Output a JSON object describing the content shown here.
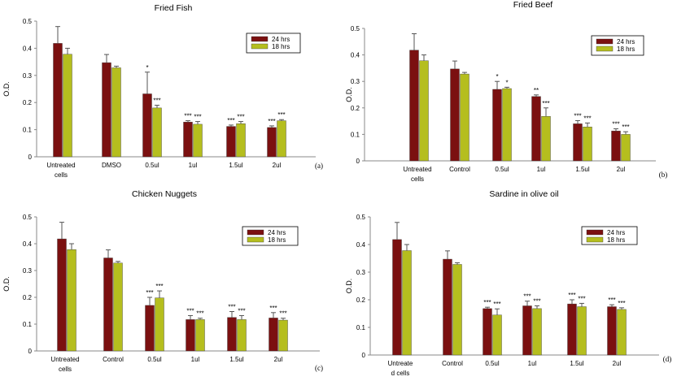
{
  "colors": {
    "series1": "#7B1010",
    "series2": "#B5BE1E",
    "axis": "#888888",
    "errorbar": "#555555"
  },
  "chart_data": [
    {
      "type": "bar",
      "title": "Fried Fish",
      "ylabel": "O.D.",
      "ylim": [
        0,
        0.5
      ],
      "yticks": [
        "0",
        "0.1",
        "0.2",
        "0.3",
        "0.4",
        "0.5"
      ],
      "grid": false,
      "legend_position": "top-right",
      "panel_label": "(a)",
      "categories": [
        [
          "Untreated",
          "cells"
        ],
        [
          "DMSO"
        ],
        [
          "0.5ul"
        ],
        [
          "1ul"
        ],
        [
          "1.5ul"
        ],
        [
          "2ul"
        ]
      ],
      "series": [
        {
          "name": "24 hrs",
          "values": [
            0.418,
            0.347,
            0.232,
            0.128,
            0.112,
            0.108
          ],
          "errors": [
            0.062,
            0.03,
            0.08,
            0.005,
            0.005,
            0.006
          ],
          "significance": [
            "",
            "",
            "*",
            "***",
            "***",
            "***"
          ]
        },
        {
          "name": "18 hrs",
          "values": [
            0.378,
            0.328,
            0.18,
            0.12,
            0.122,
            0.133
          ],
          "errors": [
            0.022,
            0.006,
            0.01,
            0.01,
            0.008,
            0.004
          ],
          "significance": [
            "",
            "",
            "***",
            "***",
            "***",
            "***"
          ]
        }
      ]
    },
    {
      "type": "bar",
      "title": "Fried Beef",
      "ylabel": "O.D.",
      "ylim": [
        0,
        0.5
      ],
      "yticks": [
        "0",
        "0.1",
        "0.2",
        "0.3",
        "0.4",
        "0.5"
      ],
      "grid": false,
      "legend_position": "top-right",
      "panel_label": "(b)",
      "categories": [
        [
          "Untreated",
          "cells"
        ],
        [
          "Control"
        ],
        [
          "0.5ul"
        ],
        [
          "1ul"
        ],
        [
          "1.5ul"
        ],
        [
          "2ul"
        ]
      ],
      "series": [
        {
          "name": "24 hrs",
          "values": [
            0.418,
            0.347,
            0.27,
            0.243,
            0.14,
            0.113
          ],
          "errors": [
            0.062,
            0.03,
            0.03,
            0.006,
            0.012,
            0.008
          ],
          "significance": [
            "",
            "",
            "*",
            "**",
            "***",
            "***"
          ]
        },
        {
          "name": "18 hrs",
          "values": [
            0.378,
            0.328,
            0.273,
            0.168,
            0.128,
            0.1
          ],
          "errors": [
            0.022,
            0.006,
            0.005,
            0.032,
            0.015,
            0.01
          ],
          "significance": [
            "",
            "",
            "*",
            "***",
            "***",
            "***"
          ]
        }
      ]
    },
    {
      "type": "bar",
      "title": "Chicken Nuggets",
      "ylabel": "O.D.",
      "ylim": [
        0,
        0.5
      ],
      "yticks": [
        "0",
        "0.1",
        "0.2",
        "0.3",
        "0.4",
        "0.5"
      ],
      "grid": false,
      "legend_position": "top-right",
      "panel_label": "(c)",
      "categories": [
        [
          "Untreated",
          "cells"
        ],
        [
          "Control"
        ],
        [
          "0.5ul"
        ],
        [
          "1ul"
        ],
        [
          "1.5ul"
        ],
        [
          "2ul"
        ]
      ],
      "series": [
        {
          "name": "24 hrs",
          "values": [
            0.418,
            0.347,
            0.17,
            0.117,
            0.125,
            0.123
          ],
          "errors": [
            0.062,
            0.03,
            0.03,
            0.015,
            0.022,
            0.02
          ],
          "significance": [
            "",
            "",
            "***",
            "***",
            "***",
            "***"
          ]
        },
        {
          "name": "18 hrs",
          "values": [
            0.378,
            0.328,
            0.198,
            0.117,
            0.117,
            0.115
          ],
          "errors": [
            0.022,
            0.006,
            0.026,
            0.005,
            0.015,
            0.007
          ],
          "significance": [
            "",
            "",
            "***",
            "***",
            "***",
            "***"
          ]
        }
      ]
    },
    {
      "type": "bar",
      "title": "Sardine in olive oil",
      "ylabel": "O.D.",
      "ylim": [
        0,
        0.5
      ],
      "yticks": [
        "0",
        "0.1",
        "0.2",
        "0.3",
        "0.4",
        "0.5"
      ],
      "grid": false,
      "legend_position": "top-right",
      "panel_label": "(d)",
      "categories": [
        [
          "Untreate",
          "d cells"
        ],
        [
          "Control"
        ],
        [
          "0.5ul"
        ],
        [
          "1ul"
        ],
        [
          "1.5ul"
        ],
        [
          "2ul"
        ]
      ],
      "series": [
        {
          "name": "24 hrs",
          "values": [
            0.418,
            0.347,
            0.168,
            0.178,
            0.185,
            0.175
          ],
          "errors": [
            0.062,
            0.03,
            0.005,
            0.017,
            0.015,
            0.007
          ],
          "significance": [
            "",
            "",
            "***",
            "***",
            "***",
            "***"
          ]
        },
        {
          "name": "18 hrs",
          "values": [
            0.378,
            0.328,
            0.145,
            0.168,
            0.175,
            0.165
          ],
          "errors": [
            0.022,
            0.006,
            0.022,
            0.01,
            0.012,
            0.006
          ],
          "significance": [
            "",
            "",
            "***",
            "***",
            "***",
            "***"
          ]
        }
      ]
    }
  ]
}
